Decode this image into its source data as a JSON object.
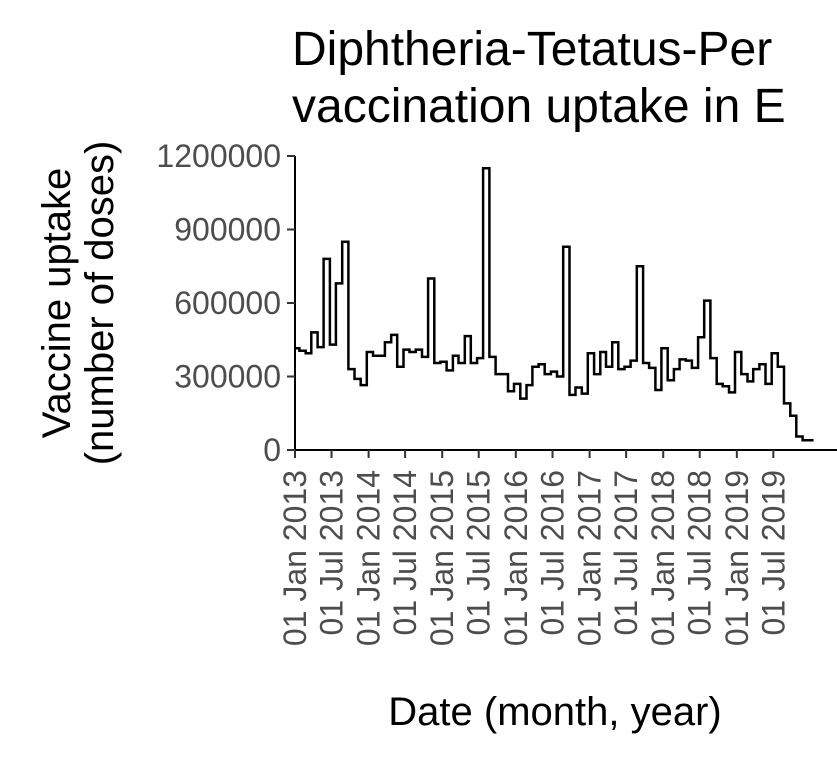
{
  "chart_data": {
    "type": "line",
    "style": "step",
    "title_lines": [
      "Diphtheria-Tetatus-Per",
      "vaccination uptake in E"
    ],
    "xlabel": "Date (month, year)",
    "ylabel_lines": [
      "Vaccine uptake",
      "(number of doses)"
    ],
    "ylim": [
      0,
      1200000
    ],
    "yticks": [
      0,
      300000,
      600000,
      900000,
      1200000
    ],
    "yticklabels": [
      "0",
      "300000",
      "600000",
      "900000",
      "1200000"
    ],
    "xlim": [
      "2013-01-01",
      "2019-12-23"
    ],
    "xticks": [
      "2013-01-01",
      "2013-07-01",
      "2014-01-01",
      "2014-07-01",
      "2015-01-01",
      "2015-07-01",
      "2016-01-01",
      "2016-07-01",
      "2017-01-01",
      "2017-07-01",
      "2018-01-01",
      "2018-07-01",
      "2019-01-01",
      "2019-07-01"
    ],
    "xticklabels": [
      "01 Jan 2013",
      "01 Jul 2013",
      "01 Jan 2014",
      "01 Jul 2014",
      "01 Jan 2015",
      "01 Jul 2015",
      "01 Jan 2016",
      "01 Jul 2016",
      "01 Jan 2017",
      "01 Jul 2017",
      "01 Jan 2018",
      "01 Jul 2018",
      "01 Jan 2019",
      "01 Jul 2019"
    ],
    "line_color": "#000000",
    "grid": false,
    "series": [
      {
        "x": [
          "2013-01-01",
          "2013-01-23",
          "2013-02-23",
          "2013-03-23",
          "2013-04-23",
          "2013-05-23",
          "2013-06-23",
          "2013-07-23",
          "2013-08-23",
          "2013-09-23",
          "2013-10-23",
          "2013-11-23",
          "2013-12-23",
          "2014-01-23",
          "2014-02-23",
          "2014-03-23",
          "2014-04-23",
          "2014-05-23",
          "2014-06-23",
          "2014-07-23",
          "2014-08-23",
          "2014-09-23",
          "2014-10-23",
          "2014-11-23",
          "2014-12-23",
          "2015-01-23",
          "2015-02-23",
          "2015-03-23",
          "2015-04-23",
          "2015-05-23",
          "2015-06-23",
          "2015-07-23",
          "2015-08-23",
          "2015-09-23",
          "2015-10-23",
          "2015-11-23",
          "2015-12-23",
          "2016-01-23",
          "2016-02-23",
          "2016-03-23",
          "2016-04-23",
          "2016-05-23",
          "2016-06-23",
          "2016-07-23",
          "2016-08-23",
          "2016-09-23",
          "2016-10-23",
          "2016-11-23",
          "2016-12-23",
          "2017-01-23",
          "2017-02-23",
          "2017-03-23",
          "2017-04-23",
          "2017-05-23",
          "2017-06-23",
          "2017-07-23",
          "2017-08-23",
          "2017-09-23",
          "2017-10-23",
          "2017-11-23",
          "2017-12-23",
          "2018-01-23",
          "2018-02-23",
          "2018-03-23",
          "2018-04-23",
          "2018-05-23",
          "2018-06-23",
          "2018-07-23",
          "2018-08-23",
          "2018-09-23",
          "2018-10-23",
          "2018-11-23",
          "2018-12-23",
          "2019-01-23",
          "2019-02-23",
          "2019-03-23",
          "2019-04-23",
          "2019-05-23",
          "2019-06-23",
          "2019-07-23",
          "2019-08-23",
          "2019-09-23",
          "2019-10-23",
          "2019-11-23",
          "2019-12-23"
        ],
        "y": [
          415000,
          405000,
          395000,
          480000,
          420000,
          780000,
          430000,
          680000,
          850000,
          330000,
          290000,
          265000,
          400000,
          385000,
          385000,
          440000,
          470000,
          340000,
          410000,
          400000,
          410000,
          380000,
          700000,
          355000,
          360000,
          325000,
          385000,
          355000,
          465000,
          355000,
          375000,
          1150000,
          380000,
          310000,
          310000,
          240000,
          270000,
          210000,
          265000,
          340000,
          350000,
          310000,
          320000,
          300000,
          830000,
          225000,
          255000,
          230000,
          395000,
          310000,
          400000,
          340000,
          440000,
          330000,
          340000,
          365000,
          750000,
          355000,
          335000,
          245000,
          415000,
          285000,
          330000,
          370000,
          365000,
          335000,
          460000,
          610000,
          375000,
          270000,
          260000,
          235000,
          400000,
          310000,
          280000,
          330000,
          350000,
          270000,
          395000,
          340000,
          190000,
          140000,
          55000,
          40000,
          40000
        ]
      }
    ]
  }
}
